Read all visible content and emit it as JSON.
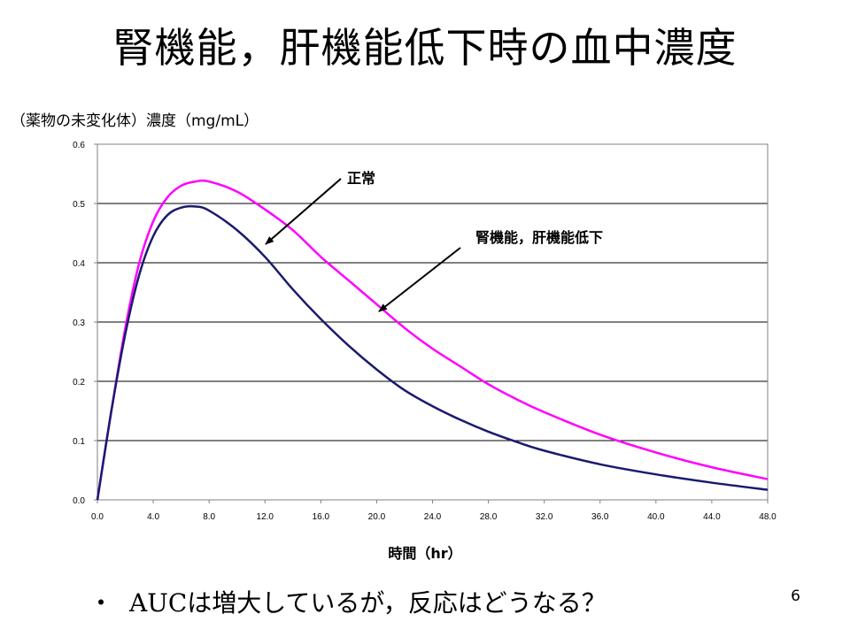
{
  "slide": {
    "title": "腎機能，肝機能低下時の血中濃度",
    "bullet_marker": "・",
    "bullet_text": "AUCは増大しているが，反応はどうなる？",
    "page_number": "6"
  },
  "chart_data": {
    "type": "line",
    "ylabel": "（薬物の未変化体）濃度（mg/mL）",
    "xlabel": "時間（hr）",
    "xlim": [
      0,
      48
    ],
    "ylim": [
      0,
      0.6
    ],
    "x_ticks": [
      "0.0",
      "4.0",
      "8.0",
      "12.0",
      "16.0",
      "20.0",
      "24.0",
      "28.0",
      "32.0",
      "36.0",
      "40.0",
      "44.0",
      "48.0"
    ],
    "y_ticks": [
      "0.0",
      "0.1",
      "0.2",
      "0.3",
      "0.4",
      "0.5",
      "0.6"
    ],
    "grid": "horizontal",
    "series": [
      {
        "name": "正常",
        "color": "#1a1a6e",
        "x": [
          0,
          1,
          2,
          3,
          4,
          5,
          6,
          7,
          8,
          10,
          12,
          14,
          16,
          18,
          20,
          22,
          24,
          26,
          28,
          30,
          32,
          36,
          40,
          44,
          48
        ],
        "y": [
          0,
          0.15,
          0.28,
          0.38,
          0.445,
          0.48,
          0.493,
          0.495,
          0.488,
          0.455,
          0.41,
          0.355,
          0.305,
          0.26,
          0.22,
          0.185,
          0.158,
          0.135,
          0.115,
          0.098,
          0.083,
          0.06,
          0.043,
          0.029,
          0.017
        ]
      },
      {
        "name": "腎機能，肝機能低下",
        "color": "#ff00ff",
        "x": [
          0,
          1,
          2,
          3,
          4,
          5,
          6,
          7,
          8,
          10,
          12,
          14,
          16,
          18,
          20,
          22,
          24,
          26,
          28,
          30,
          32,
          36,
          40,
          44,
          48
        ],
        "y": [
          0,
          0.15,
          0.29,
          0.4,
          0.47,
          0.51,
          0.53,
          0.537,
          0.537,
          0.52,
          0.49,
          0.455,
          0.41,
          0.37,
          0.33,
          0.29,
          0.255,
          0.225,
          0.195,
          0.17,
          0.148,
          0.11,
          0.08,
          0.055,
          0.035
        ]
      }
    ],
    "annotations": [
      {
        "text": "正常"
      },
      {
        "text": "腎機能，肝機能低下"
      }
    ]
  }
}
